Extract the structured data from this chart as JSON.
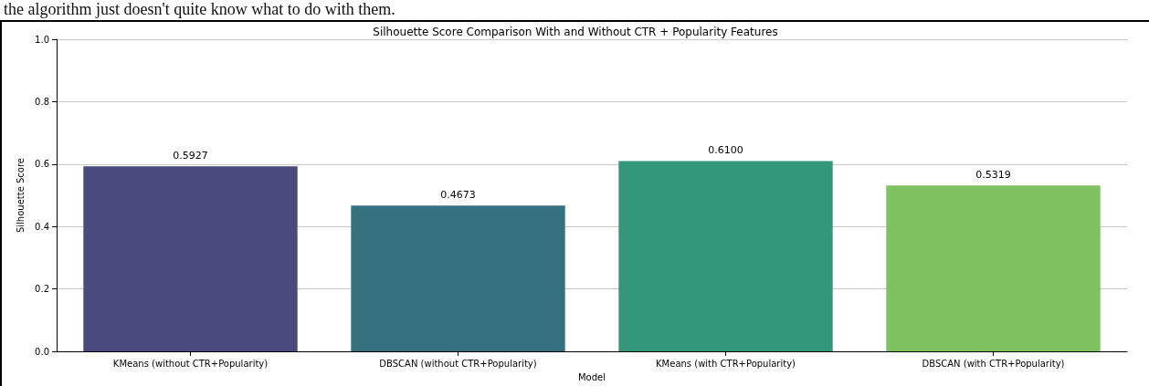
{
  "chart_data": {
    "type": "bar",
    "title": "Silhouette Score Comparison With and Without CTR + Popularity Features",
    "xlabel": "Model",
    "ylabel": "Silhouette Score",
    "annotations": [
      "the algorithm just doesn't quite know what to do with them."
    ],
    "categories": [
      "KMeans (without CTR+Popularity)",
      "DBSCAN (without CTR+Popularity)",
      "KMeans (with CTR+Popularity)",
      "DBSCAN (with CTR+Popularity)"
    ],
    "values": [
      0.5927,
      0.4673,
      0.61,
      0.5319
    ],
    "value_labels": [
      "0.5927",
      "0.4673",
      "0.6100",
      "0.5319"
    ],
    "colors": [
      "#4a4b7c",
      "#357180",
      "#33987b",
      "#7fc262"
    ],
    "ylim": [
      0,
      1
    ],
    "yticks": [
      {
        "value": 0,
        "label": "0.0"
      },
      {
        "value": 0.2,
        "label": "0.2"
      },
      {
        "value": 0.4,
        "label": "0.4"
      },
      {
        "value": 0.6,
        "label": "0.6"
      },
      {
        "value": 0.8,
        "label": "0.8"
      },
      {
        "value": 1,
        "label": "1.0"
      }
    ],
    "grid": "y"
  }
}
